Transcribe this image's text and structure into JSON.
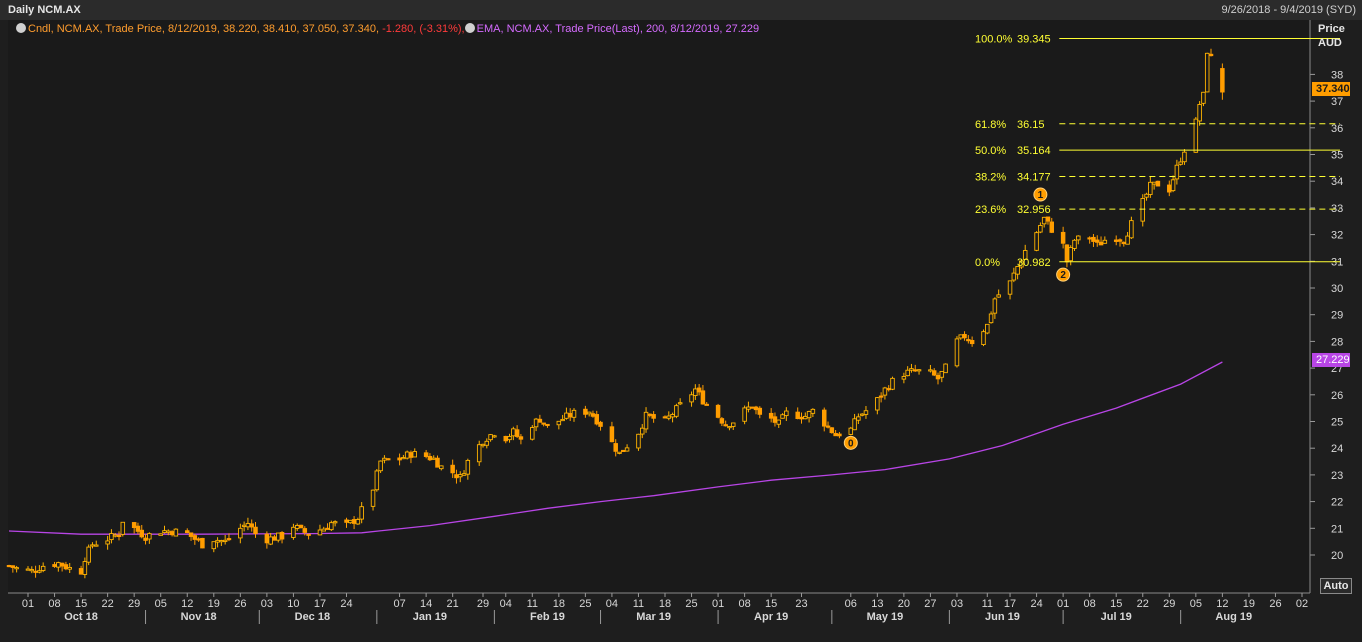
{
  "window": {
    "title": "Daily NCM.AX",
    "date_range": "9/26/2018 - 9/4/2019 (SYD)",
    "auto_label": "Auto"
  },
  "legend": {
    "candle": {
      "prefix": "Cndl, NCM.AX, Trade Price, 8/12/2019, 38.220, 38.410, 37.050, 37.340,",
      "change": "-1.280, (-3.31%),"
    },
    "ema": {
      "text": "EMA, NCM.AX, Trade Price(Last),  200,  8/12/2019, 27.229"
    }
  },
  "price_axis": {
    "title": "Price",
    "unit": "AUD",
    "last_price_badge": "37.340",
    "ema_badge": "27.229"
  },
  "colors": {
    "background": "#1a1a1a",
    "candle_up": "#ffb300",
    "candle_down": "#ff9d00",
    "ema": "#b845e6",
    "fibonacci": "#ffff33",
    "last_badge": "#ff9d00",
    "ema_badge": "#b845e6",
    "change_negative": "#ff3b3b"
  },
  "chart_data": {
    "type": "candlestick",
    "symbol": "NCM.AX",
    "interval": "Daily",
    "ylim": [
      19.0,
      40.2
    ],
    "yticks": [
      20,
      21,
      22,
      23,
      24,
      25,
      26,
      27,
      28,
      29,
      30,
      31,
      32,
      33,
      34,
      35,
      36,
      37,
      38
    ],
    "xlim": [
      "2018-09-26",
      "2019-09-04"
    ],
    "x_day_ticks": [
      {
        "date": "2018-10-01",
        "label": "01"
      },
      {
        "date": "2018-10-08",
        "label": "08"
      },
      {
        "date": "2018-10-15",
        "label": "15"
      },
      {
        "date": "2018-10-22",
        "label": "22"
      },
      {
        "date": "2018-10-29",
        "label": "29"
      },
      {
        "date": "2018-11-05",
        "label": "05"
      },
      {
        "date": "2018-11-12",
        "label": "12"
      },
      {
        "date": "2018-11-19",
        "label": "19"
      },
      {
        "date": "2018-11-26",
        "label": "26"
      },
      {
        "date": "2018-12-03",
        "label": "03"
      },
      {
        "date": "2018-12-10",
        "label": "10"
      },
      {
        "date": "2018-12-17",
        "label": "17"
      },
      {
        "date": "2018-12-24",
        "label": "24"
      },
      {
        "date": "2019-01-07",
        "label": "07"
      },
      {
        "date": "2019-01-14",
        "label": "14"
      },
      {
        "date": "2019-01-21",
        "label": "21"
      },
      {
        "date": "2019-01-29",
        "label": "29"
      },
      {
        "date": "2019-02-04",
        "label": "04"
      },
      {
        "date": "2019-02-11",
        "label": "11"
      },
      {
        "date": "2019-02-18",
        "label": "18"
      },
      {
        "date": "2019-02-25",
        "label": "25"
      },
      {
        "date": "2019-03-04",
        "label": "04"
      },
      {
        "date": "2019-03-11",
        "label": "11"
      },
      {
        "date": "2019-03-18",
        "label": "18"
      },
      {
        "date": "2019-03-25",
        "label": "25"
      },
      {
        "date": "2019-04-01",
        "label": "01"
      },
      {
        "date": "2019-04-08",
        "label": "08"
      },
      {
        "date": "2019-04-15",
        "label": "15"
      },
      {
        "date": "2019-04-23",
        "label": "23"
      },
      {
        "date": "2019-05-06",
        "label": "06"
      },
      {
        "date": "2019-05-13",
        "label": "13"
      },
      {
        "date": "2019-05-20",
        "label": "20"
      },
      {
        "date": "2019-05-27",
        "label": "27"
      },
      {
        "date": "2019-06-03",
        "label": "03"
      },
      {
        "date": "2019-06-11",
        "label": "11"
      },
      {
        "date": "2019-06-17",
        "label": "17"
      },
      {
        "date": "2019-06-24",
        "label": "24"
      },
      {
        "date": "2019-07-01",
        "label": "01"
      },
      {
        "date": "2019-07-08",
        "label": "08"
      },
      {
        "date": "2019-07-15",
        "label": "15"
      },
      {
        "date": "2019-07-22",
        "label": "22"
      },
      {
        "date": "2019-07-29",
        "label": "29"
      },
      {
        "date": "2019-08-05",
        "label": "05"
      },
      {
        "date": "2019-08-12",
        "label": "12"
      },
      {
        "date": "2019-08-19",
        "label": "19"
      },
      {
        "date": "2019-08-26",
        "label": "26"
      },
      {
        "date": "2019-09-02",
        "label": "02"
      }
    ],
    "x_month_ticks": [
      {
        "date": "2018-10-15",
        "label": "Oct 18"
      },
      {
        "date": "2018-11-15",
        "label": "Nov 18"
      },
      {
        "date": "2018-12-15",
        "label": "Dec 18"
      },
      {
        "date": "2019-01-15",
        "label": "Jan 19"
      },
      {
        "date": "2019-02-15",
        "label": "Feb 19"
      },
      {
        "date": "2019-03-15",
        "label": "Mar 19"
      },
      {
        "date": "2019-04-15",
        "label": "Apr 19"
      },
      {
        "date": "2019-05-15",
        "label": "May 19"
      },
      {
        "date": "2019-06-15",
        "label": "Jun 19"
      },
      {
        "date": "2019-07-15",
        "label": "Jul 19"
      },
      {
        "date": "2019-08-15",
        "label": "Aug 19"
      }
    ],
    "month_separators": [
      "2018-11-01",
      "2018-12-01",
      "2019-01-01",
      "2019-02-01",
      "2019-03-01",
      "2019-04-01",
      "2019-05-01",
      "2019-06-01",
      "2019-07-01",
      "2019-08-01"
    ],
    "close_path": [
      [
        "2018-09-26",
        19.6
      ],
      [
        "2018-09-28",
        19.5
      ],
      [
        "2018-10-02",
        19.4
      ],
      [
        "2018-10-05",
        19.6
      ],
      [
        "2018-10-09",
        19.7
      ],
      [
        "2018-10-12",
        19.5
      ],
      [
        "2018-10-15",
        19.4
      ],
      [
        "2018-10-16",
        19.9
      ],
      [
        "2018-10-18",
        20.4
      ],
      [
        "2018-10-22",
        20.6
      ],
      [
        "2018-10-25",
        20.8
      ],
      [
        "2018-10-26",
        21.3
      ],
      [
        "2018-10-29",
        21.0
      ],
      [
        "2018-11-01",
        20.7
      ],
      [
        "2018-11-05",
        20.9
      ],
      [
        "2018-11-08",
        20.9
      ],
      [
        "2018-11-12",
        20.8
      ],
      [
        "2018-11-14",
        20.6
      ],
      [
        "2018-11-16",
        20.4
      ],
      [
        "2018-11-19",
        20.6
      ],
      [
        "2018-11-22",
        20.5
      ],
      [
        "2018-11-26",
        21.0
      ],
      [
        "2018-11-28",
        21.2
      ],
      [
        "2018-11-30",
        20.8
      ],
      [
        "2018-12-03",
        20.6
      ],
      [
        "2018-12-07",
        20.7
      ],
      [
        "2018-12-10",
        21.1
      ],
      [
        "2018-12-12",
        20.9
      ],
      [
        "2018-12-14",
        20.8
      ],
      [
        "2018-12-18",
        21.0
      ],
      [
        "2018-12-20",
        21.2
      ],
      [
        "2018-12-24",
        21.1
      ],
      [
        "2018-12-27",
        21.4
      ],
      [
        "2018-12-31",
        22.5
      ],
      [
        "2019-01-02",
        23.5
      ],
      [
        "2019-01-07",
        23.6
      ],
      [
        "2019-01-10",
        23.8
      ],
      [
        "2019-01-14",
        23.7
      ],
      [
        "2019-01-16",
        23.6
      ],
      [
        "2019-01-18",
        23.3
      ],
      [
        "2019-01-21",
        23.1
      ],
      [
        "2019-01-23",
        22.9
      ],
      [
        "2019-01-25",
        23.5
      ],
      [
        "2019-01-29",
        24.3
      ],
      [
        "2019-02-01",
        24.6
      ],
      [
        "2019-02-04",
        24.4
      ],
      [
        "2019-02-06",
        24.6
      ],
      [
        "2019-02-08",
        24.3
      ],
      [
        "2019-02-11",
        24.9
      ],
      [
        "2019-02-13",
        25.1
      ],
      [
        "2019-02-15",
        24.8
      ],
      [
        "2019-02-19",
        25.1
      ],
      [
        "2019-02-22",
        25.3
      ],
      [
        "2019-02-26",
        25.4
      ],
      [
        "2019-03-01",
        24.9
      ],
      [
        "2019-03-04",
        24.2
      ],
      [
        "2019-03-06",
        23.8
      ],
      [
        "2019-03-08",
        24.1
      ],
      [
        "2019-03-11",
        24.6
      ],
      [
        "2019-03-13",
        25.2
      ],
      [
        "2019-03-18",
        25.0
      ],
      [
        "2019-03-20",
        25.3
      ],
      [
        "2019-03-22",
        25.6
      ],
      [
        "2019-03-26",
        26.2
      ],
      [
        "2019-03-28",
        25.8
      ],
      [
        "2019-04-01",
        25.2
      ],
      [
        "2019-04-03",
        24.9
      ],
      [
        "2019-04-05",
        25.0
      ],
      [
        "2019-04-08",
        25.4
      ],
      [
        "2019-04-10",
        25.6
      ],
      [
        "2019-04-12",
        25.2
      ],
      [
        "2019-04-15",
        25.1
      ],
      [
        "2019-04-17",
        24.9
      ],
      [
        "2019-04-19",
        25.3
      ],
      [
        "2019-04-24",
        25.2
      ],
      [
        "2019-04-26",
        25.4
      ],
      [
        "2019-04-30",
        24.8
      ],
      [
        "2019-05-02",
        24.5
      ],
      [
        "2019-05-06",
        24.7
      ],
      [
        "2019-05-08",
        25.2
      ],
      [
        "2019-05-10",
        25.4
      ],
      [
        "2019-05-13",
        25.8
      ],
      [
        "2019-05-15",
        26.2
      ],
      [
        "2019-05-17",
        26.5
      ],
      [
        "2019-05-20",
        26.8
      ],
      [
        "2019-05-23",
        26.9
      ],
      [
        "2019-05-27",
        26.8
      ],
      [
        "2019-05-29",
        26.6
      ],
      [
        "2019-05-31",
        27.0
      ],
      [
        "2019-06-03",
        28.0
      ],
      [
        "2019-06-05",
        28.2
      ],
      [
        "2019-06-07",
        28.0
      ],
      [
        "2019-06-11",
        28.6
      ],
      [
        "2019-06-13",
        29.6
      ],
      [
        "2019-06-17",
        30.2
      ],
      [
        "2019-06-19",
        30.8
      ],
      [
        "2019-06-21",
        31.4
      ],
      [
        "2019-06-24",
        32.1
      ],
      [
        "2019-06-26",
        32.6
      ],
      [
        "2019-06-28",
        32.2
      ],
      [
        "2019-07-01",
        31.6
      ],
      [
        "2019-07-02",
        31.0
      ],
      [
        "2019-07-04",
        31.8
      ],
      [
        "2019-07-08",
        31.9
      ],
      [
        "2019-07-10",
        31.6
      ],
      [
        "2019-07-12",
        31.8
      ],
      [
        "2019-07-15",
        31.9
      ],
      [
        "2019-07-17",
        31.8
      ],
      [
        "2019-07-19",
        32.4
      ],
      [
        "2019-07-22",
        33.2
      ],
      [
        "2019-07-24",
        33.8
      ],
      [
        "2019-07-26",
        33.9
      ],
      [
        "2019-07-29",
        33.7
      ],
      [
        "2019-07-31",
        34.5
      ],
      [
        "2019-08-02",
        35.2
      ],
      [
        "2019-08-05",
        36.2
      ],
      [
        "2019-08-06",
        36.9
      ],
      [
        "2019-08-07",
        37.2
      ],
      [
        "2019-08-08",
        38.9
      ],
      [
        "2019-08-09",
        38.6
      ],
      [
        "2019-08-12",
        37.34
      ]
    ],
    "ema_200": [
      [
        "2018-09-26",
        20.9
      ],
      [
        "2018-10-15",
        20.78
      ],
      [
        "2018-11-15",
        20.78
      ],
      [
        "2018-12-15",
        20.8
      ],
      [
        "2018-12-28",
        20.83
      ],
      [
        "2019-01-15",
        21.1
      ],
      [
        "2019-02-01",
        21.45
      ],
      [
        "2019-02-15",
        21.75
      ],
      [
        "2019-03-01",
        22.0
      ],
      [
        "2019-03-15",
        22.22
      ],
      [
        "2019-04-01",
        22.55
      ],
      [
        "2019-04-15",
        22.8
      ],
      [
        "2019-05-01",
        23.0
      ],
      [
        "2019-05-15",
        23.2
      ],
      [
        "2019-06-01",
        23.6
      ],
      [
        "2019-06-15",
        24.1
      ],
      [
        "2019-07-01",
        24.9
      ],
      [
        "2019-07-15",
        25.5
      ],
      [
        "2019-08-01",
        26.4
      ],
      [
        "2019-08-12",
        27.229
      ]
    ],
    "last_candle": {
      "date": "2019-08-12",
      "open": 38.22,
      "high": 38.41,
      "low": 37.05,
      "close": 37.34
    },
    "fibonacci": {
      "start_date": "2019-06-30",
      "high_date": "2019-06-01",
      "levels": [
        {
          "pct": "100.0%",
          "value": 39.345,
          "label": "39.345",
          "style": "solid"
        },
        {
          "pct": "61.8%",
          "value": 36.15,
          "label": "36.15",
          "style": "dashed"
        },
        {
          "pct": "50.0%",
          "value": 35.164,
          "label": "35.164",
          "style": "solid"
        },
        {
          "pct": "38.2%",
          "value": 34.177,
          "label": "34.177",
          "style": "dashed"
        },
        {
          "pct": "23.6%",
          "value": 32.956,
          "label": "32.956",
          "style": "dashed"
        },
        {
          "pct": "0.0%",
          "value": 30.982,
          "label": "30.982",
          "style": "solid"
        }
      ]
    },
    "wave_labels": [
      {
        "label": "0",
        "date": "2019-05-06",
        "value": 24.2
      },
      {
        "label": "1",
        "date": "2019-06-25",
        "value": 33.5
      },
      {
        "label": "2",
        "date": "2019-07-01",
        "value": 30.5
      }
    ]
  }
}
